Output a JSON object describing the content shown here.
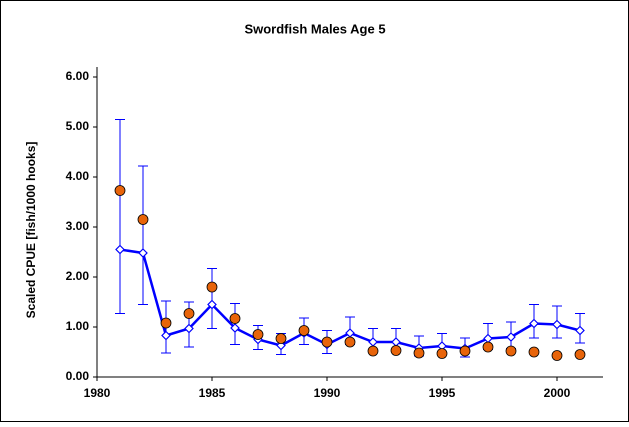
{
  "chart_data": {
    "type": "line",
    "title": "Swordfish Males Age  5",
    "y_label": "Scaled CPUE [fish/1000 hooks]",
    "x": [
      1981,
      1982,
      1983,
      1984,
      1985,
      1986,
      1987,
      1988,
      1989,
      1990,
      1991,
      1992,
      1993,
      1994,
      1995,
      1996,
      1997,
      1998,
      1999,
      2000,
      2001
    ],
    "series": [
      {
        "color": "#0000ff",
        "marker": "diamond",
        "values": [
          2.55,
          2.48,
          0.83,
          0.97,
          1.45,
          0.98,
          0.75,
          0.63,
          0.88,
          0.65,
          0.88,
          0.7,
          0.7,
          0.58,
          0.62,
          0.57,
          0.77,
          0.8,
          1.07,
          1.05,
          0.93
        ],
        "upper": [
          5.15,
          4.22,
          1.52,
          1.5,
          2.17,
          1.47,
          1.03,
          0.87,
          1.18,
          0.93,
          1.2,
          0.97,
          0.97,
          0.82,
          0.87,
          0.78,
          1.07,
          1.1,
          1.45,
          1.42,
          1.27
        ],
        "lower": [
          1.27,
          1.45,
          0.48,
          0.6,
          0.97,
          0.65,
          0.55,
          0.45,
          0.65,
          0.47,
          0.65,
          0.5,
          0.5,
          0.42,
          0.45,
          0.4,
          0.55,
          0.57,
          0.78,
          0.78,
          0.68
        ]
      },
      {
        "color": "#e8640a",
        "marker": "circle",
        "values": [
          3.73,
          3.15,
          1.08,
          1.27,
          1.8,
          1.17,
          0.85,
          0.77,
          0.93,
          0.7,
          0.7,
          0.52,
          0.53,
          0.48,
          0.47,
          0.52,
          0.6,
          0.52,
          0.5,
          0.43,
          0.45
        ]
      }
    ],
    "xlim": [
      1980,
      2002
    ],
    "xticks": [
      1980,
      1985,
      1990,
      1995,
      2000
    ],
    "ylim": [
      0,
      6
    ],
    "yticks": [
      {
        "value": 0,
        "label": "0.00"
      },
      {
        "value": 1,
        "label": "1.00"
      },
      {
        "value": 2,
        "label": "2.00"
      },
      {
        "value": 3,
        "label": "3.00"
      },
      {
        "value": 4,
        "label": "4.00"
      },
      {
        "value": 5,
        "label": "5.00"
      },
      {
        "value": 6,
        "label": "6.00"
      }
    ],
    "grid": false
  }
}
